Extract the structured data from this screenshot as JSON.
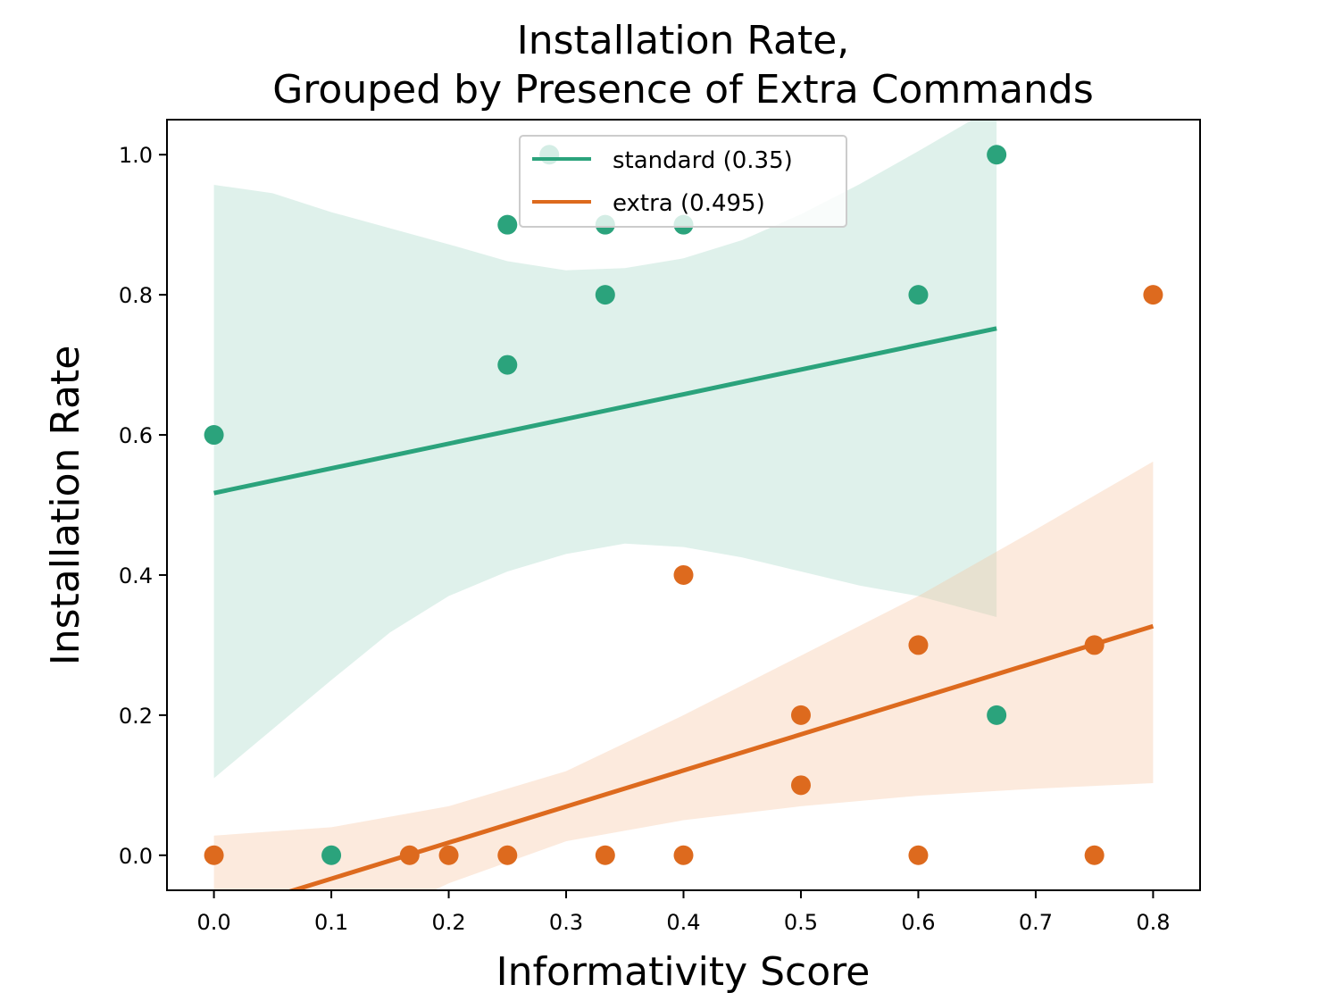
{
  "chart_data": {
    "type": "scatter",
    "title_lines": [
      "Installation Rate,",
      "Grouped by Presence of Extra Commands"
    ],
    "xlabel": "Informativity Score",
    "ylabel": "Installation Rate",
    "xlim": [
      -0.04,
      0.84
    ],
    "ylim": [
      -0.05,
      1.05
    ],
    "xticks": [
      0.0,
      0.1,
      0.2,
      0.3,
      0.4,
      0.5,
      0.6,
      0.7,
      0.8
    ],
    "xtick_labels": [
      "0.0",
      "0.1",
      "0.2",
      "0.3",
      "0.4",
      "0.5",
      "0.6",
      "0.7",
      "0.8"
    ],
    "yticks": [
      0.0,
      0.2,
      0.4,
      0.6,
      0.8,
      1.0
    ],
    "ytick_labels": [
      "0.0",
      "0.2",
      "0.4",
      "0.6",
      "0.8",
      "1.0"
    ],
    "grid": false,
    "legend_position": "top-center",
    "series": [
      {
        "name": "standard (0.35)",
        "color": "#2ba37c",
        "band_color": "#2ba37c",
        "points": [
          {
            "x": 0.0,
            "y": 0.6
          },
          {
            "x": 0.1,
            "y": 0.0
          },
          {
            "x": 0.25,
            "y": 0.9
          },
          {
            "x": 0.25,
            "y": 0.7
          },
          {
            "x": 0.2857,
            "y": 1.0
          },
          {
            "x": 0.3333,
            "y": 0.9
          },
          {
            "x": 0.3333,
            "y": 0.8
          },
          {
            "x": 0.4,
            "y": 0.9
          },
          {
            "x": 0.6,
            "y": 0.8
          },
          {
            "x": 0.6667,
            "y": 1.0
          },
          {
            "x": 0.6667,
            "y": 0.2
          }
        ],
        "fit": {
          "x0": 0.0,
          "y0": 0.517,
          "x1": 0.6667,
          "y1": 0.752
        },
        "band_upper": [
          [
            0.0,
            0.957
          ],
          [
            0.05,
            0.945
          ],
          [
            0.1,
            0.918
          ],
          [
            0.15,
            0.895
          ],
          [
            0.2,
            0.872
          ],
          [
            0.25,
            0.848
          ],
          [
            0.3,
            0.835
          ],
          [
            0.35,
            0.838
          ],
          [
            0.4,
            0.852
          ],
          [
            0.45,
            0.878
          ],
          [
            0.5,
            0.915
          ],
          [
            0.55,
            0.958
          ],
          [
            0.6,
            1.005
          ],
          [
            0.6667,
            1.07
          ]
        ],
        "band_lower": [
          [
            0.0,
            0.11
          ],
          [
            0.05,
            0.18
          ],
          [
            0.1,
            0.25
          ],
          [
            0.15,
            0.318
          ],
          [
            0.2,
            0.37
          ],
          [
            0.25,
            0.405
          ],
          [
            0.3,
            0.43
          ],
          [
            0.35,
            0.445
          ],
          [
            0.4,
            0.44
          ],
          [
            0.45,
            0.425
          ],
          [
            0.5,
            0.405
          ],
          [
            0.55,
            0.385
          ],
          [
            0.6,
            0.37
          ],
          [
            0.6667,
            0.34
          ]
        ]
      },
      {
        "name": "extra (0.495)",
        "color": "#dd6a1e",
        "band_color": "#f5c49f",
        "points": [
          {
            "x": 0.0,
            "y": 0.0
          },
          {
            "x": 0.1667,
            "y": 0.0
          },
          {
            "x": 0.2,
            "y": 0.0
          },
          {
            "x": 0.25,
            "y": 0.0
          },
          {
            "x": 0.3333,
            "y": 0.0
          },
          {
            "x": 0.4,
            "y": 0.0
          },
          {
            "x": 0.4,
            "y": 0.4
          },
          {
            "x": 0.5,
            "y": 0.2
          },
          {
            "x": 0.5,
            "y": 0.1
          },
          {
            "x": 0.6,
            "y": 0.3
          },
          {
            "x": 0.6,
            "y": 0.0
          },
          {
            "x": 0.75,
            "y": 0.3
          },
          {
            "x": 0.75,
            "y": 0.0
          },
          {
            "x": 0.8,
            "y": 0.8
          }
        ],
        "fit": {
          "x0": 0.0,
          "y0": -0.085,
          "x1": 0.8,
          "y1": 0.327
        },
        "band_upper": [
          [
            0.0,
            0.028
          ],
          [
            0.1,
            0.04
          ],
          [
            0.2,
            0.07
          ],
          [
            0.3,
            0.12
          ],
          [
            0.4,
            0.2
          ],
          [
            0.5,
            0.285
          ],
          [
            0.6,
            0.37
          ],
          [
            0.7,
            0.465
          ],
          [
            0.8,
            0.562
          ]
        ],
        "band_lower": [
          [
            0.0,
            -0.2
          ],
          [
            0.1,
            -0.12
          ],
          [
            0.2,
            -0.04
          ],
          [
            0.3,
            0.02
          ],
          [
            0.4,
            0.05
          ],
          [
            0.5,
            0.07
          ],
          [
            0.6,
            0.085
          ],
          [
            0.7,
            0.095
          ],
          [
            0.8,
            0.103
          ]
        ]
      }
    ]
  }
}
